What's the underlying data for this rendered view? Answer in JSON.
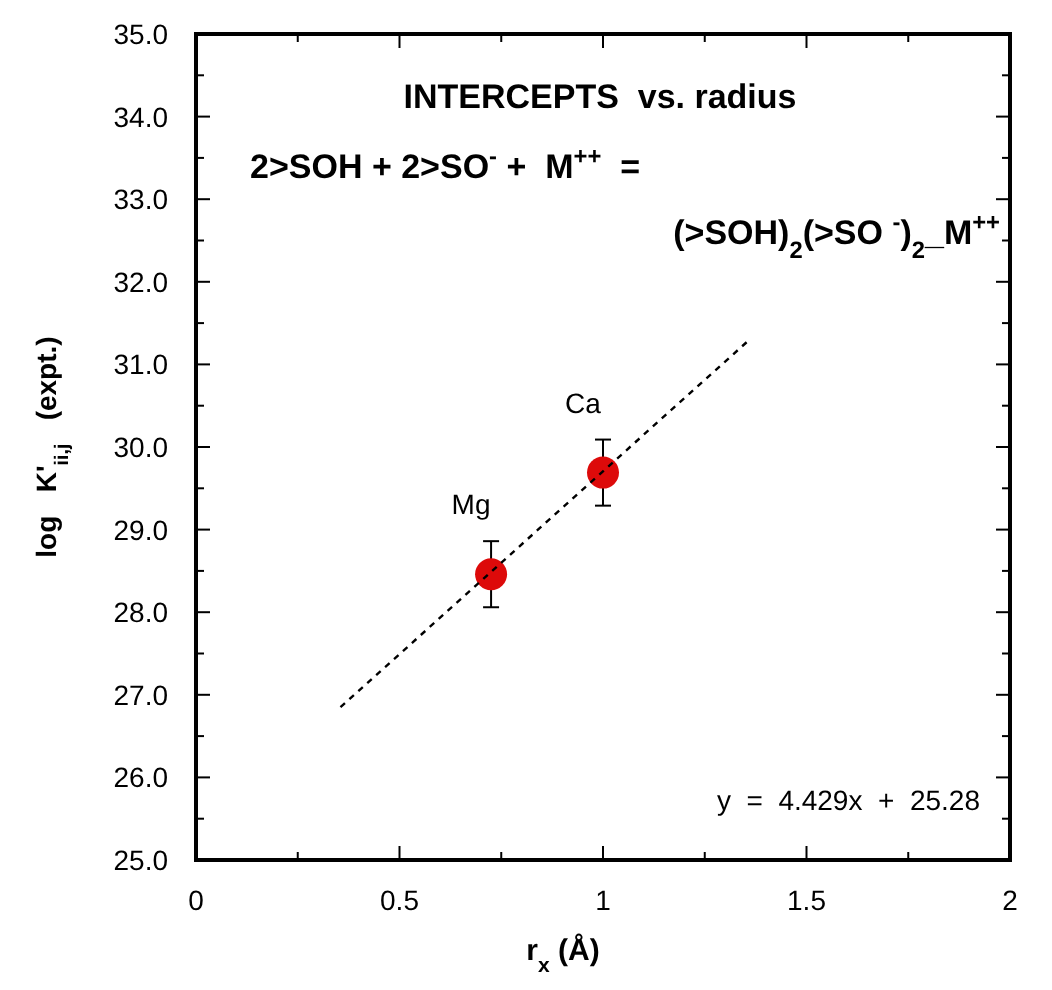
{
  "chart_data": {
    "type": "scatter",
    "title": "INTERCEPTS  vs. radius",
    "xlabel": "r$_{x}$ (Å)",
    "ylabel": "log   K'$_{ii,j}$   (expt.)",
    "annotations": [
      "2>SOH + 2>SO$^{-}$ +  M$^{++}$  =",
      "(>SOH)$_{2}$(>SO $^{-}$)$_{2}$_M$^{++}$",
      "y  =  4.429x  +  25.28",
      {
        "text": "Mg",
        "x": 0.725,
        "y": 28.46
      },
      {
        "text": "Ca",
        "x": 1.0,
        "y": 29.69
      }
    ],
    "series": [
      {
        "color": "#dd0a0a",
        "x": [
          0.725,
          1.0
        ],
        "values": [
          28.46,
          29.69
        ],
        "errors": [
          0.4,
          0.4
        ],
        "marker": "circle"
      },
      {
        "type": "line",
        "color": "#000000",
        "x": [
          0.355,
          1.36
        ],
        "values": [
          26.85,
          31.3
        ],
        "line_style": "dashed"
      }
    ],
    "xlim": [
      0,
      2
    ],
    "ylim": [
      25,
      35
    ],
    "xticks": [
      0,
      {
        "value": 0.25,
        "label": null
      },
      0.5,
      {
        "value": 0.75,
        "label": null
      },
      1,
      {
        "value": 1.25,
        "label": null
      },
      1.5,
      {
        "value": 1.75,
        "label": null
      },
      2
    ],
    "yticks": [
      {
        "value": 25,
        "label": "25.0"
      },
      {
        "value": 25.5,
        "label": null
      },
      {
        "value": 26,
        "label": "26.0"
      },
      {
        "value": 26.5,
        "label": null
      },
      {
        "value": 27,
        "label": "27.0"
      },
      {
        "value": 27.5,
        "label": null
      },
      {
        "value": 28,
        "label": "28.0"
      },
      {
        "value": 28.5,
        "label": null
      },
      {
        "value": 29,
        "label": "29.0"
      },
      {
        "value": 29.5,
        "label": null
      },
      {
        "value": 30,
        "label": "30.0"
      },
      {
        "value": 30.5,
        "label": null
      },
      {
        "value": 31,
        "label": "31.0"
      },
      {
        "value": 31.5,
        "label": null
      },
      {
        "value": 32,
        "label": "32.0"
      },
      {
        "value": 32.5,
        "label": null
      },
      {
        "value": 33,
        "label": "33.0"
      },
      {
        "value": 33.5,
        "label": null
      },
      {
        "value": 34,
        "label": "34.0"
      },
      {
        "value": 34.5,
        "label": null
      },
      {
        "value": 35,
        "label": "35.0"
      }
    ],
    "grid": false
  }
}
